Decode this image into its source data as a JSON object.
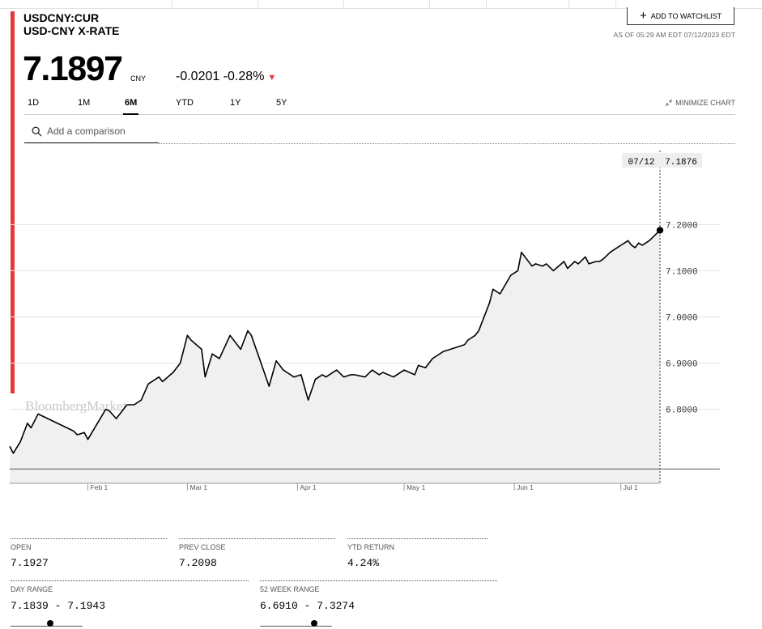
{
  "header": {
    "ticker": "USDCNY:CUR",
    "name": "USD-CNY X-RATE",
    "watchlist_label": "ADD TO WATCHLIST",
    "as_of": "AS OF 05:29 AM EDT 07/12/2023 EDT"
  },
  "quote": {
    "price": "7.1897",
    "currency": "CNY",
    "change": "-0.0201",
    "change_pct": "-0.28%",
    "direction": "down",
    "down_color": "#e8363a"
  },
  "ranges": [
    "1D",
    "1M",
    "6M",
    "YTD",
    "1Y",
    "5Y"
  ],
  "active_range": "6M",
  "minimize_label": "MINIMIZE CHART",
  "compare": {
    "placeholder": "Add a comparison"
  },
  "chart_data": {
    "type": "line",
    "watermark": "BloombergMarkets",
    "tooltip_date": "07/12",
    "tooltip_value": "7.1876",
    "ylim": [
      6.64,
      7.36
    ],
    "y_ticks": [
      "7.2000",
      "7.1000",
      "7.0000",
      "6.9000",
      "6.8000"
    ],
    "y_tick_values": [
      7.2,
      7.1,
      7.0,
      6.9,
      6.8
    ],
    "x_tick_labels": [
      "Feb 1",
      "Mar 1",
      "Apr 1",
      "May 1",
      "Jun 1",
      "Jul 1"
    ],
    "x_tick_days": [
      22,
      50,
      81,
      111,
      142,
      172
    ],
    "x_end_day": 183,
    "series": [
      {
        "x": [
          0,
          1,
          3,
          5,
          6,
          8,
          18,
          19,
          21,
          22,
          27,
          28,
          30,
          31,
          33,
          35,
          37,
          39,
          42,
          43,
          46,
          48,
          50,
          51,
          54,
          55,
          57,
          59,
          62,
          65,
          67,
          68,
          73,
          75,
          77,
          78,
          80,
          82,
          84,
          86,
          88,
          89,
          92,
          94,
          96,
          97,
          100,
          102,
          104,
          105,
          108,
          111,
          114,
          115,
          117,
          119,
          120,
          122,
          124,
          126,
          128,
          129,
          131,
          132,
          135,
          136,
          138,
          141,
          143,
          144,
          147,
          148,
          150,
          151,
          153,
          156,
          157,
          159,
          160,
          162,
          163,
          165,
          166,
          167,
          169,
          172,
          173,
          174,
          175,
          176,
          177,
          178,
          180,
          183
        ],
        "values": [
          6.72,
          6.705,
          6.73,
          6.77,
          6.76,
          6.79,
          6.753,
          6.745,
          6.75,
          6.735,
          6.8,
          6.797,
          6.78,
          6.79,
          6.81,
          6.81,
          6.82,
          6.855,
          6.87,
          6.86,
          6.88,
          6.9,
          6.96,
          6.95,
          6.93,
          6.87,
          6.92,
          6.91,
          6.96,
          6.93,
          6.97,
          6.96,
          6.85,
          6.905,
          6.885,
          6.88,
          6.87,
          6.875,
          6.82,
          6.865,
          6.875,
          6.87,
          6.885,
          6.87,
          6.875,
          6.875,
          6.87,
          6.885,
          6.875,
          6.88,
          6.87,
          6.885,
          6.875,
          6.895,
          6.89,
          6.91,
          6.915,
          6.925,
          6.93,
          6.935,
          6.94,
          6.95,
          6.96,
          6.97,
          7.03,
          7.06,
          7.05,
          7.09,
          7.1,
          7.14,
          7.11,
          7.115,
          7.11,
          7.115,
          7.1,
          7.12,
          7.105,
          7.12,
          7.115,
          7.13,
          7.115,
          7.12,
          7.12,
          7.125,
          7.14,
          7.155,
          7.16,
          7.165,
          7.155,
          7.15,
          7.16,
          7.155,
          7.165,
          7.1876
        ]
      }
    ],
    "line_color": "#000000",
    "fill_color": "#f0f0f0"
  },
  "stats": {
    "open_label": "OPEN",
    "open": "7.1927",
    "prev_close_label": "PREV CLOSE",
    "prev_close": "7.2098",
    "ytd_return_label": "YTD RETURN",
    "ytd_return": "4.24%",
    "day_range_label": "DAY RANGE",
    "day_range": "7.1839 - 7.1943",
    "day_range_position": 0.55,
    "week52_label": "52 WEEK RANGE",
    "week52": "6.6910 - 7.3274",
    "week52_position": 0.75
  }
}
